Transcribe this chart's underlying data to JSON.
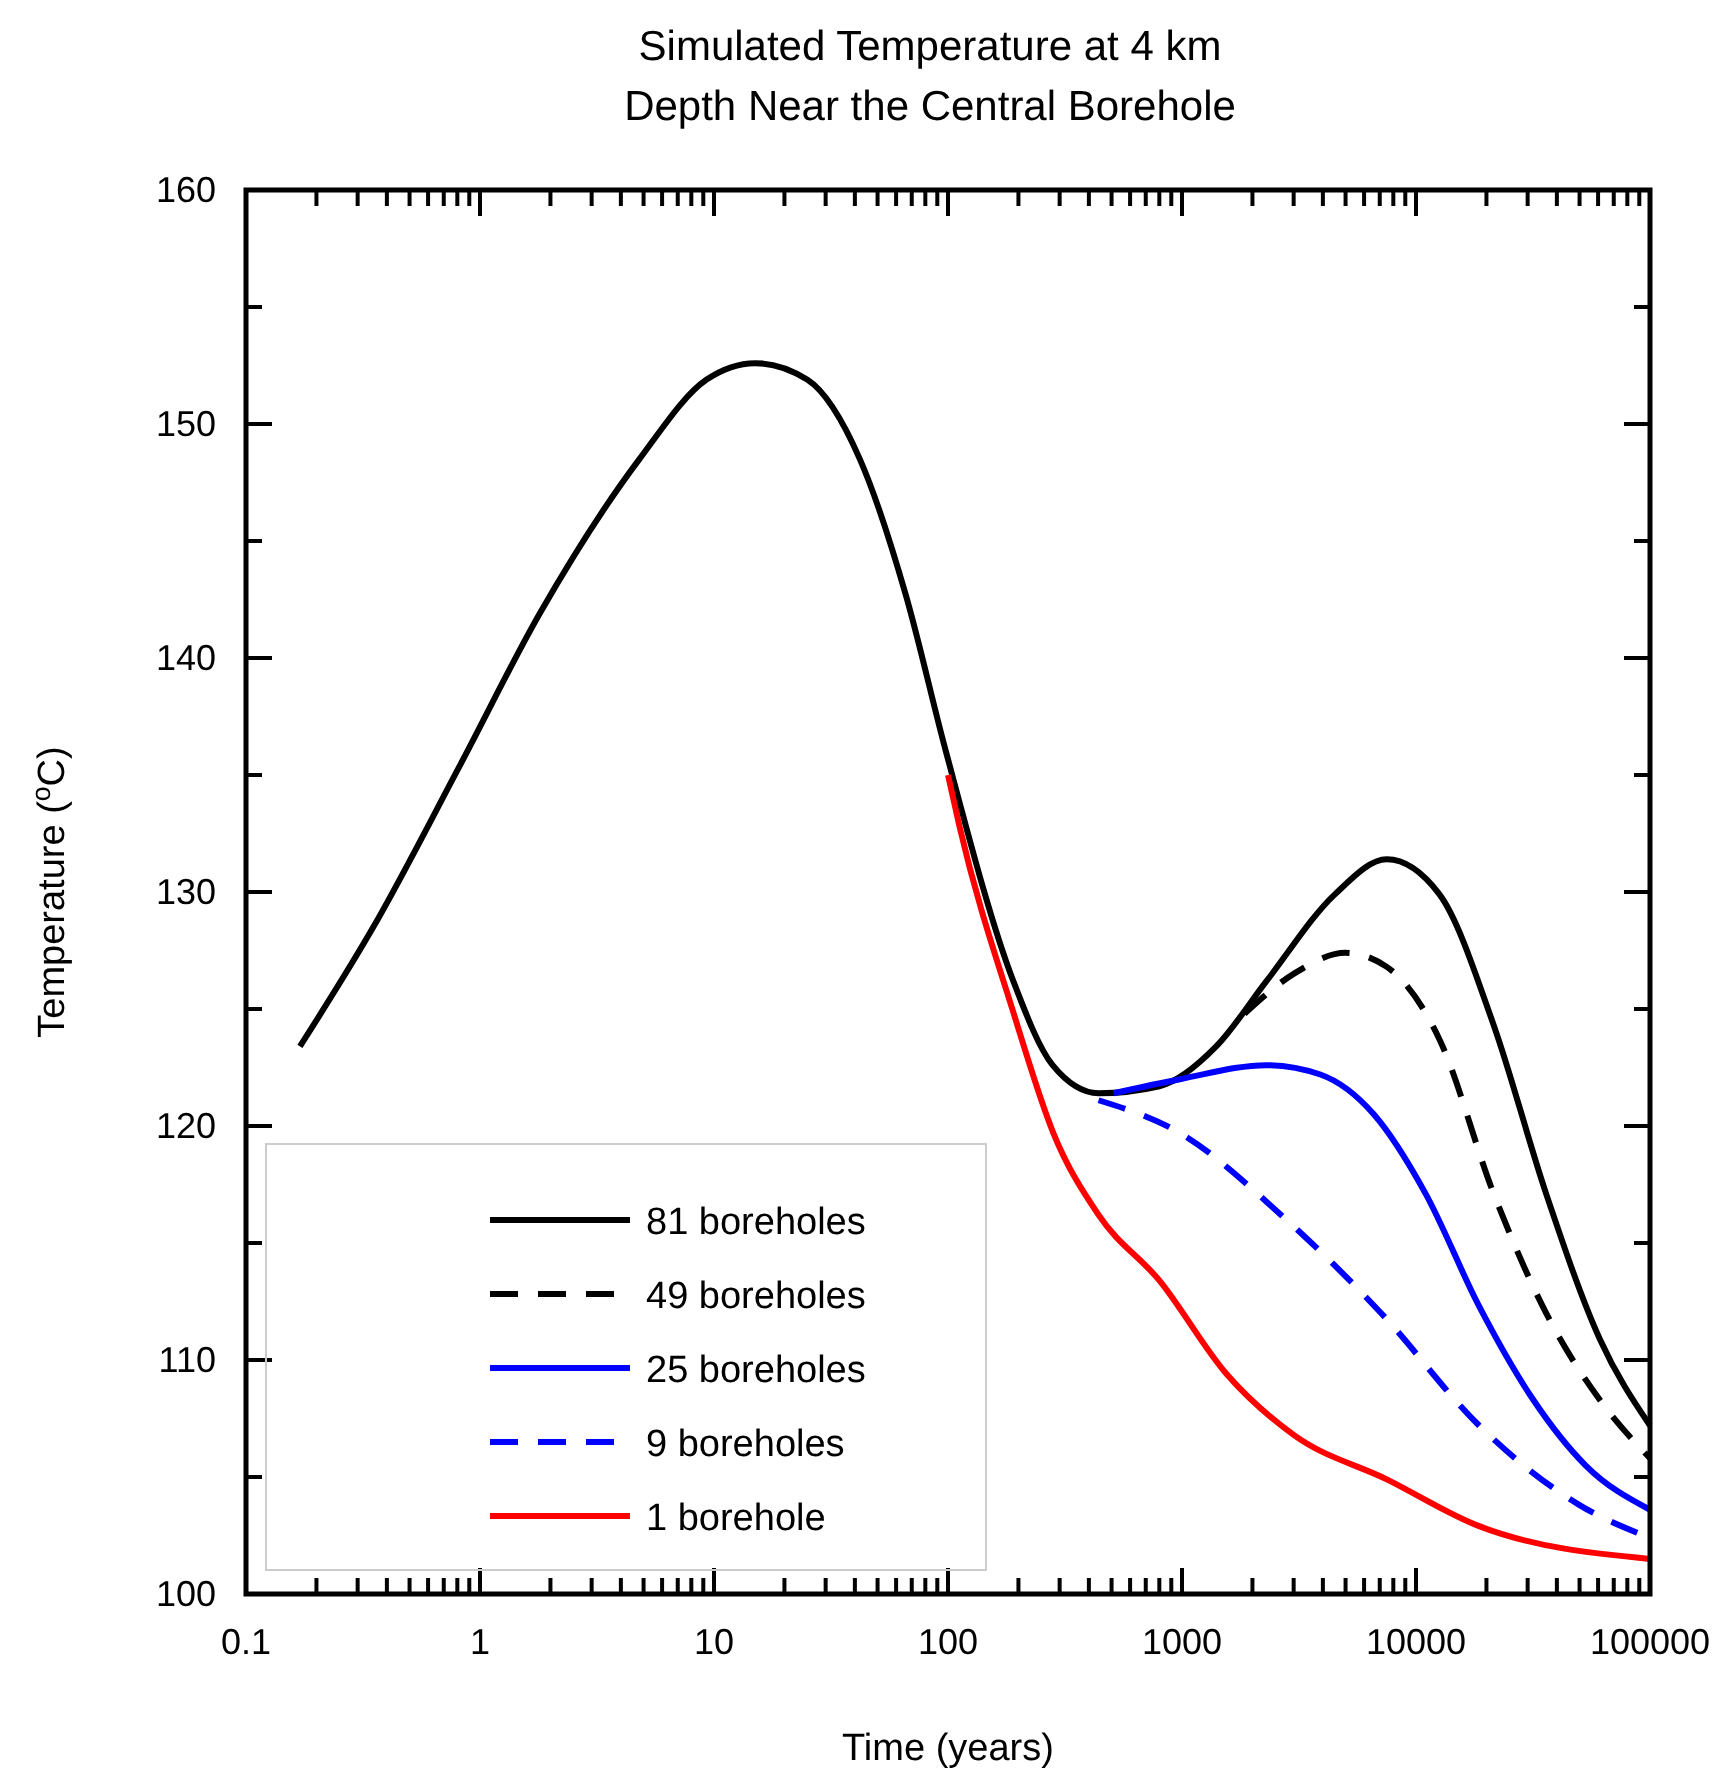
{
  "chart_data": {
    "type": "line",
    "title": "Simulated Temperature at 4 km\nDepth Near the Central Borehole",
    "xlabel": "Time (years)",
    "ylabel": "Temperature ($^{o}$C)",
    "log": "x",
    "legend": "bottom left",
    "xlim": [
      0.1,
      100000
    ],
    "ylim": [
      100,
      160
    ],
    "xticks": [
      0.1,
      {
        "value": 0.2,
        "label": null
      },
      {
        "value": 0.3,
        "label": null
      },
      {
        "value": 0.4,
        "label": null
      },
      {
        "value": 0.5,
        "label": null
      },
      {
        "value": 0.6,
        "label": null
      },
      {
        "value": 0.7,
        "label": null
      },
      {
        "value": 0.8,
        "label": null
      },
      {
        "value": 0.9,
        "label": null
      },
      1,
      {
        "value": 2,
        "label": null
      },
      {
        "value": 3,
        "label": null
      },
      {
        "value": 4,
        "label": null
      },
      {
        "value": 5,
        "label": null
      },
      {
        "value": 6,
        "label": null
      },
      {
        "value": 7,
        "label": null
      },
      {
        "value": 8,
        "label": null
      },
      {
        "value": 9,
        "label": null
      },
      10,
      {
        "value": 20,
        "label": null
      },
      {
        "value": 30,
        "label": null
      },
      {
        "value": 40,
        "label": null
      },
      {
        "value": 50,
        "label": null
      },
      {
        "value": 60,
        "label": null
      },
      {
        "value": 70,
        "label": null
      },
      {
        "value": 80,
        "label": null
      },
      {
        "value": 90,
        "label": null
      },
      100,
      {
        "value": 200,
        "label": null
      },
      {
        "value": 300,
        "label": null
      },
      {
        "value": 400,
        "label": null
      },
      {
        "value": 500,
        "label": null
      },
      {
        "value": 600,
        "label": null
      },
      {
        "value": 700,
        "label": null
      },
      {
        "value": 800,
        "label": null
      },
      {
        "value": 900,
        "label": null
      },
      1000,
      {
        "value": 2000,
        "label": null
      },
      {
        "value": 3000,
        "label": null
      },
      {
        "value": 4000,
        "label": null
      },
      {
        "value": 5000,
        "label": null
      },
      {
        "value": 6000,
        "label": null
      },
      {
        "value": 7000,
        "label": null
      },
      {
        "value": 8000,
        "label": null
      },
      {
        "value": 9000,
        "label": null
      },
      10000,
      {
        "value": 20000,
        "label": null
      },
      {
        "value": 30000,
        "label": null
      },
      {
        "value": 40000,
        "label": null
      },
      {
        "value": 50000,
        "label": null
      },
      {
        "value": 60000,
        "label": null
      },
      {
        "value": 70000,
        "label": null
      },
      {
        "value": 80000,
        "label": null
      },
      {
        "value": 90000,
        "label": null
      },
      100000
    ],
    "yticks": [
      100,
      {
        "value": 105,
        "label": null
      },
      110,
      {
        "value": 115,
        "label": null
      },
      120,
      {
        "value": 125,
        "label": null
      },
      130,
      {
        "value": 135,
        "label": null
      },
      140,
      {
        "value": 145,
        "label": null
      },
      150,
      {
        "value": 155,
        "label": null
      },
      160
    ],
    "series": [
      {
        "name": "81 boreholes",
        "color": "#000000",
        "line_style": "solid",
        "x": [
          0.17,
          0.35,
          0.82,
          1.8,
          4.8,
          9.3,
          15,
          25,
          42,
          66,
          98,
          190,
          280,
          440,
          800,
          1400,
          2300,
          4500,
          7500,
          12600,
          21500,
          36000,
          61000,
          100000
        ],
        "values": [
          123.4,
          128.5,
          135.4,
          141.9,
          148.5,
          151.9,
          152.6,
          151.9,
          148.5,
          142.7,
          136,
          126.2,
          122.6,
          121.4,
          121.7,
          123.4,
          126.2,
          129.9,
          131.4,
          129.9,
          124.3,
          117.1,
          110.9,
          107.2
        ]
      },
      {
        "name": "49 boreholes",
        "color": "#000000",
        "line_style": "dashed",
        "x": [
          1850,
          3000,
          5000,
          7500,
          12600,
          21500,
          36000,
          61000,
          100000
        ],
        "values": [
          124.8,
          126.5,
          127.4,
          126.8,
          123.7,
          117.1,
          112,
          108.3,
          105.8
        ]
      },
      {
        "name": "25 boreholes",
        "color": "#0000ff",
        "line_style": "solid",
        "x": [
          510,
          980,
          2300,
          3900,
          6600,
          11000,
          18600,
          31700,
          53000,
          100000
        ],
        "values": [
          121.4,
          122,
          122.6,
          122.2,
          120.5,
          117.1,
          112.3,
          108.3,
          105.5,
          103.6
        ]
      },
      {
        "name": "9 boreholes",
        "color": "#0000ff",
        "line_style": "dashed",
        "x": [
          440,
          980,
          2650,
          7100,
          18600,
          50000,
          100000
        ],
        "values": [
          121.1,
          119.7,
          116.2,
          112,
          107.2,
          103.8,
          102.4
        ]
      },
      {
        "name": "1 borehole",
        "color": "#ff0000",
        "line_style": "solid",
        "x": [
          100,
          112,
          191,
          282,
          440,
          800,
          1550,
          3000,
          7500,
          18600,
          100000
        ],
        "values": [
          135,
          132.8,
          124.8,
          119.7,
          116.2,
          113.4,
          109.4,
          106.8,
          104.9,
          102.9,
          101.5
        ]
      }
    ]
  }
}
